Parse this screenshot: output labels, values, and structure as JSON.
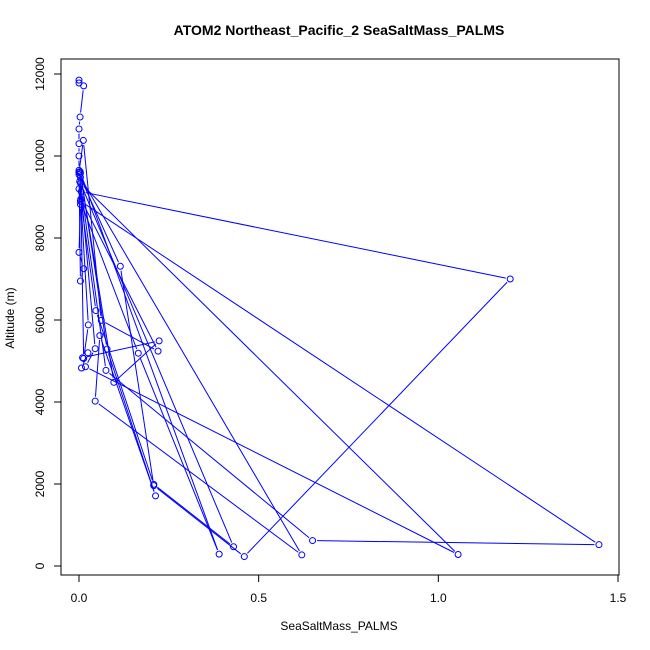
{
  "chart_data": {
    "type": "line",
    "title": "ATOM2 Northeast_Pacific_2 SeaSaltMass_PALMS",
    "xlabel": "SeaSaltMass_PALMS",
    "ylabel": "Altitude (m)",
    "xlim": [
      0,
      1.5
    ],
    "ylim": [
      0,
      12000
    ],
    "xticks": [
      0,
      0.5,
      1.0,
      1.5
    ],
    "xtick_labels": [
      "0.0",
      "0.5",
      "1.0",
      "1.5"
    ],
    "yticks": [
      0,
      2000,
      4000,
      6000,
      8000,
      10000,
      12000
    ],
    "ytick_labels": [
      "0",
      "2000",
      "4000",
      "6000",
      "8000",
      "10000",
      "12000"
    ],
    "grid": false,
    "series_color": "#0000ff",
    "series": [
      {
        "x": [
          0.0,
          0.0,
          0.013,
          0.003,
          0.0,
          0.0,
          0.0,
          0.0,
          0.0,
          0.0,
          0.0,
          0.004,
          0.0,
          0.013,
          0.004,
          0.0,
          0.012,
          0.062,
          0.22,
          0.005,
          0.047,
          0.208,
          0.43,
          0.002,
          0.026,
          0.013,
          0.004,
          0.078,
          0.213,
          0.058,
          0.045,
          0.62,
          0.004,
          0.115,
          0.208,
          0.46,
          1.2,
          0.006,
          0.045,
          0.018,
          1.055,
          0.004,
          0.075,
          0.65,
          1.447,
          0.004,
          0.165,
          0.39,
          0.003,
          0.097,
          0.223,
          0.01,
          0.025,
          0.007
        ],
        "y": [
          11850,
          11780,
          11710,
          10950,
          10660,
          10300,
          10000,
          9650,
          9600,
          9550,
          9200,
          8820,
          7650,
          7250,
          6950,
          9600,
          10380,
          5990,
          5240,
          8950,
          6230,
          1990,
          470,
          9380,
          5880,
          5060,
          9580,
          5290,
          1710,
          5620,
          4020,
          270,
          9480,
          7310,
          1960,
          230,
          7000,
          9130,
          5300,
          4860,
          280,
          9340,
          4770,
          620,
          520,
          8900,
          5190,
          290,
          9620,
          4480,
          5490,
          5080,
          5200,
          4830
        ]
      }
    ]
  }
}
